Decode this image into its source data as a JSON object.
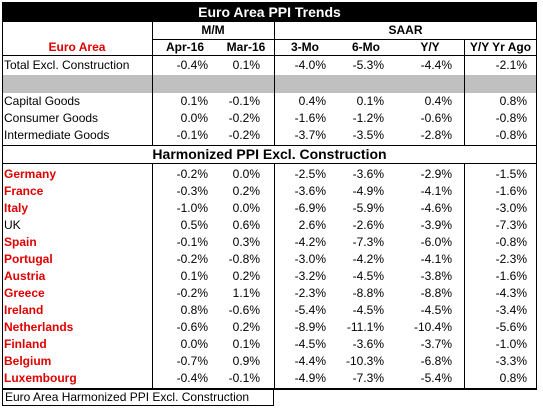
{
  "title": "Euro Area PPI Trends",
  "header": {
    "group_mm": "M/M",
    "group_saar": "SAAR",
    "row_label": "Euro Area",
    "cols": [
      "Apr-16",
      "Mar-16",
      "3-Mo",
      "6-Mo",
      "Y/Y",
      "Y/Y Yr Ago"
    ]
  },
  "euro_rows": [
    {
      "label": "Total Excl. Construction",
      "values": [
        "-0.4%",
        "0.1%",
        "-4.0%",
        "-5.3%",
        "-4.4%",
        "-2.1%"
      ]
    },
    {
      "label": "Capital Goods",
      "values": [
        "0.1%",
        "-0.1%",
        "0.4%",
        "0.1%",
        "0.4%",
        "0.8%"
      ]
    },
    {
      "label": "Consumer Goods",
      "values": [
        "0.0%",
        "-0.2%",
        "-1.6%",
        "-1.2%",
        "-0.6%",
        "-0.8%"
      ]
    },
    {
      "label": "Intermediate Goods",
      "values": [
        "-0.1%",
        "-0.2%",
        "-3.7%",
        "-3.5%",
        "-2.8%",
        "-0.8%"
      ]
    }
  ],
  "section_title": "Harmonized PPI Excl. Construction",
  "countries": [
    {
      "label": "Germany",
      "values": [
        "-0.2%",
        "0.0%",
        "-2.5%",
        "-3.6%",
        "-2.9%",
        "-1.5%"
      ]
    },
    {
      "label": "France",
      "values": [
        "-0.3%",
        "0.2%",
        "-3.6%",
        "-4.9%",
        "-4.1%",
        "-1.6%"
      ]
    },
    {
      "label": "Italy",
      "values": [
        "-1.0%",
        "0.0%",
        "-6.9%",
        "-5.9%",
        "-4.6%",
        "-3.0%"
      ]
    },
    {
      "label": "UK",
      "values": [
        "0.5%",
        "0.6%",
        "2.6%",
        "-2.6%",
        "-3.9%",
        "-7.3%"
      ]
    },
    {
      "label": "Spain",
      "values": [
        "-0.1%",
        "0.3%",
        "-4.2%",
        "-7.3%",
        "-6.0%",
        "-0.8%"
      ]
    },
    {
      "label": "Portugal",
      "values": [
        "-0.2%",
        "-0.8%",
        "-3.0%",
        "-4.2%",
        "-4.1%",
        "-2.3%"
      ]
    },
    {
      "label": "Austria",
      "values": [
        "0.1%",
        "0.2%",
        "-3.2%",
        "-4.5%",
        "-3.8%",
        "-1.6%"
      ]
    },
    {
      "label": "Greece",
      "values": [
        "-0.2%",
        "1.1%",
        "-2.3%",
        "-8.8%",
        "-8.8%",
        "-4.3%"
      ]
    },
    {
      "label": "Ireland",
      "values": [
        "0.8%",
        "-0.6%",
        "-5.4%",
        "-4.5%",
        "-4.5%",
        "-3.4%"
      ]
    },
    {
      "label": "Netherlands",
      "values": [
        "-0.6%",
        "0.2%",
        "-8.9%",
        "-11.1%",
        "-10.4%",
        "-5.6%"
      ]
    },
    {
      "label": "Finland",
      "values": [
        "0.0%",
        "0.1%",
        "-4.5%",
        "-3.6%",
        "-3.7%",
        "-1.0%"
      ]
    },
    {
      "label": "Belgium",
      "values": [
        "-0.7%",
        "0.9%",
        "-4.4%",
        "-10.3%",
        "-6.8%",
        "-3.3%"
      ]
    },
    {
      "label": "Luxembourg",
      "values": [
        "-0.4%",
        "-0.1%",
        "-4.9%",
        "-7.3%",
        "-5.4%",
        "0.8%"
      ]
    }
  ],
  "footer": "Euro Area Harmonized PPI Excl. Construction"
}
